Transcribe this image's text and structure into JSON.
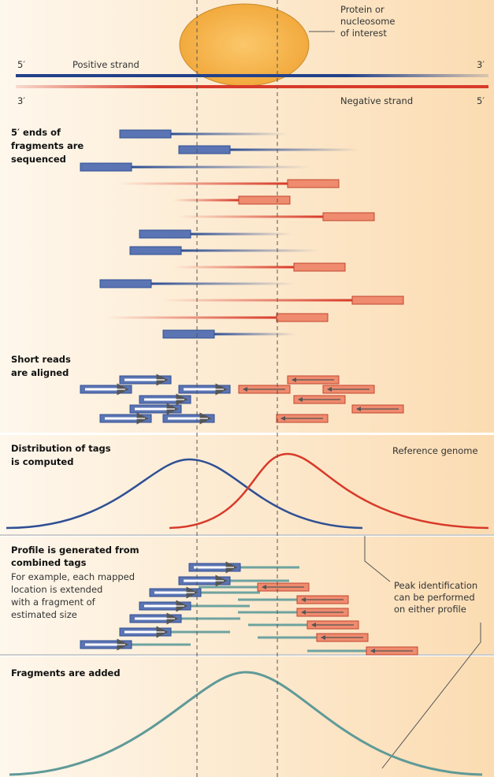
{
  "protein_label": [
    "Protein or",
    "nucleosome",
    "of interest"
  ],
  "positive_strand": {
    "left": "5′",
    "label": "Positive strand",
    "right": "3′"
  },
  "negative_strand": {
    "left": "3′",
    "label": "Negative strand",
    "right": "5′"
  },
  "steps": [
    {
      "title": [
        "5′ ends of",
        "fragments are",
        "sequenced"
      ]
    },
    {
      "title": [
        "Short reads",
        "are aligned"
      ]
    },
    {
      "title": [
        "Distribution of tags",
        "is computed"
      ]
    },
    {
      "title": [
        "Profile is generated from",
        "combined tags"
      ],
      "text": [
        "For example, each mapped",
        "location is extended",
        "with a fragment of",
        "estimated size"
      ]
    },
    {
      "title": [
        "Fragments are added"
      ]
    }
  ],
  "reference_label": "Reference genome",
  "peak_note": [
    "Peak identification",
    "can be performed",
    "on either profile"
  ]
}
